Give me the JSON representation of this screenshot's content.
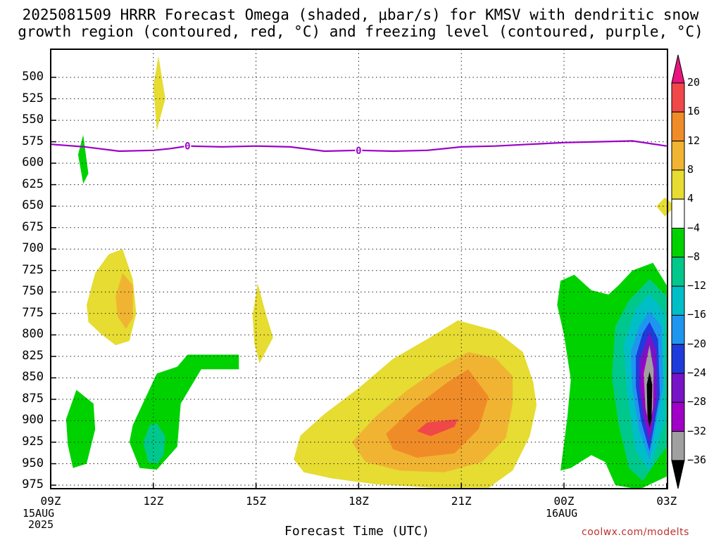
{
  "title_line1": "2025081509 HRRR Forecast Omega (shaded, μbar/s) for KMSV with dendritic snow",
  "title_line2": "growth region (contoured, red, °C) and freezing level (contoured, purple, °C)",
  "xaxis_title": "Forecast Time (UTC)",
  "credit": "coolwx.com/modelts",
  "chart_data": {
    "type": "heatmap",
    "xlabel": "Forecast Time (UTC)",
    "ylabel": "",
    "x_range_hours": [
      0,
      18
    ],
    "y_range_mb": [
      475,
      985
    ],
    "y_ticks": [
      500,
      525,
      550,
      575,
      600,
      625,
      650,
      675,
      700,
      725,
      750,
      775,
      800,
      825,
      850,
      875,
      900,
      925,
      950,
      975
    ],
    "y_tick_labels": [
      "500",
      "525",
      "550",
      "575",
      "600",
      "625",
      "650",
      "675",
      "700",
      "725",
      "750",
      "775",
      "800",
      "825",
      "850",
      "875",
      "900",
      "925",
      "950",
      "975"
    ],
    "x_ticks": [
      {
        "hour": 0,
        "label": "09Z",
        "sub1": "15AUG",
        "sub2": "2025"
      },
      {
        "hour": 3,
        "label": "12Z",
        "sub1": "",
        "sub2": ""
      },
      {
        "hour": 6,
        "label": "15Z",
        "sub1": "",
        "sub2": ""
      },
      {
        "hour": 9,
        "label": "18Z",
        "sub1": "",
        "sub2": ""
      },
      {
        "hour": 12,
        "label": "21Z",
        "sub1": "",
        "sub2": ""
      },
      {
        "hour": 15,
        "label": "00Z",
        "sub1": "16AUG",
        "sub2": ""
      },
      {
        "hour": 18,
        "label": "03Z",
        "sub1": "",
        "sub2": ""
      }
    ],
    "colorbar": {
      "labels": [
        "20",
        "16",
        "12",
        "8",
        "4",
        "−4",
        "−8",
        "−12",
        "−16",
        "−20",
        "−24",
        "−28",
        "−32",
        "−36"
      ],
      "bins": [
        {
          "range": ">20",
          "color": "#e8157f"
        },
        {
          "range": "16 to 20",
          "color": "#f04848"
        },
        {
          "range": "12 to 16",
          "color": "#f08c28"
        },
        {
          "range": "8 to 12",
          "color": "#f0b432"
        },
        {
          "range": "4 to 8",
          "color": "#e6dc32"
        },
        {
          "range": "-4 to 4",
          "color": "#ffffff"
        },
        {
          "range": "-8 to -4",
          "color": "#00d200"
        },
        {
          "range": "-12 to -8",
          "color": "#00c88c"
        },
        {
          "range": "-16 to -12",
          "color": "#00bec8"
        },
        {
          "range": "-20 to -16",
          "color": "#1e96f0"
        },
        {
          "range": "-24 to -20",
          "color": "#1e3cdc"
        },
        {
          "range": "-28 to -24",
          "color": "#7814c8"
        },
        {
          "range": "-32 to -28",
          "color": "#a000c8"
        },
        {
          "range": "-36 to -32",
          "color": "#a0a0a0"
        },
        {
          "range": "<-36",
          "color": "#000000"
        }
      ]
    },
    "freezing_level": {
      "label": "0",
      "color": "#9b00c8",
      "points": [
        [
          0,
          578
        ],
        [
          1,
          581
        ],
        [
          2,
          586
        ],
        [
          3,
          585
        ],
        [
          3.5,
          583
        ],
        [
          4,
          580
        ],
        [
          5,
          581
        ],
        [
          6,
          580
        ],
        [
          7,
          581
        ],
        [
          8,
          586
        ],
        [
          9,
          585
        ],
        [
          10,
          586
        ],
        [
          11,
          585
        ],
        [
          12,
          581
        ],
        [
          13,
          580
        ],
        [
          14,
          578
        ],
        [
          15,
          576
        ],
        [
          16,
          575
        ],
        [
          17,
          574
        ],
        [
          18,
          580
        ]
      ],
      "label_hours": [
        4,
        9
      ]
    },
    "terrain_surface_mb": 982,
    "regions": [
      {
        "bin": "4 to 8",
        "points": [
          [
            3.0,
            510
          ],
          [
            3.15,
            475
          ],
          [
            3.35,
            525
          ],
          [
            3.1,
            562
          ]
        ]
      },
      {
        "bin": "-8 to -4",
        "points": [
          [
            0.8,
            590
          ],
          [
            0.95,
            567
          ],
          [
            1.1,
            612
          ],
          [
            0.95,
            624
          ]
        ]
      },
      {
        "bin": "4 to 8",
        "points": [
          [
            17.7,
            650
          ],
          [
            17.95,
            640
          ],
          [
            18.25,
            650
          ],
          [
            17.95,
            662
          ]
        ]
      },
      {
        "bin": "4 to 8",
        "points": [
          [
            1.05,
            765
          ],
          [
            1.3,
            728
          ],
          [
            1.7,
            706
          ],
          [
            2.1,
            700
          ],
          [
            2.4,
            735
          ],
          [
            2.5,
            775
          ],
          [
            2.3,
            807
          ],
          [
            1.9,
            812
          ],
          [
            1.5,
            800
          ],
          [
            1.1,
            785
          ]
        ]
      },
      {
        "bin": "8 to 12",
        "points": [
          [
            1.9,
            755
          ],
          [
            2.1,
            728
          ],
          [
            2.4,
            742
          ],
          [
            2.4,
            780
          ],
          [
            2.2,
            793
          ],
          [
            1.95,
            778
          ]
        ]
      },
      {
        "bin": "4 to 8",
        "points": [
          [
            5.9,
            777
          ],
          [
            6.05,
            740
          ],
          [
            6.3,
            777
          ],
          [
            6.5,
            803
          ],
          [
            6.1,
            833
          ],
          [
            5.95,
            810
          ]
        ]
      },
      {
        "bin": "-8 to -4",
        "points": [
          [
            0.45,
            898
          ],
          [
            0.75,
            864
          ],
          [
            1.25,
            880
          ],
          [
            1.3,
            910
          ],
          [
            1.05,
            950
          ],
          [
            0.65,
            955
          ],
          [
            0.5,
            928
          ]
        ]
      },
      {
        "bin": "-8 to -4",
        "points": [
          [
            2.4,
            905
          ],
          [
            3.1,
            845
          ],
          [
            3.7,
            837
          ],
          [
            4.0,
            823
          ],
          [
            5.5,
            823
          ],
          [
            5.5,
            840
          ],
          [
            4.4,
            840
          ],
          [
            3.8,
            880
          ],
          [
            3.7,
            930
          ],
          [
            3.1,
            957
          ],
          [
            2.6,
            955
          ],
          [
            2.3,
            925
          ]
        ]
      },
      {
        "bin": "-12 to -8",
        "points": [
          [
            2.7,
            925
          ],
          [
            2.9,
            905
          ],
          [
            3.1,
            903
          ],
          [
            3.35,
            918
          ],
          [
            3.3,
            940
          ],
          [
            3.1,
            950
          ],
          [
            2.85,
            948
          ]
        ]
      },
      {
        "bin": "4 to 8",
        "points": [
          [
            7.1,
            945
          ],
          [
            7.3,
            917
          ],
          [
            8,
            892
          ],
          [
            9,
            862
          ],
          [
            10,
            828
          ],
          [
            11,
            805
          ],
          [
            11.9,
            783
          ],
          [
            13,
            795
          ],
          [
            13.8,
            820
          ],
          [
            14.1,
            855
          ],
          [
            14.2,
            882
          ],
          [
            14.0,
            918
          ],
          [
            13.5,
            958
          ],
          [
            12.8,
            978
          ],
          [
            11.2,
            978
          ],
          [
            9.5,
            974
          ],
          [
            8.2,
            967
          ],
          [
            7.4,
            960
          ]
        ]
      },
      {
        "bin": "8 to 12",
        "points": [
          [
            8.8,
            925
          ],
          [
            9.5,
            895
          ],
          [
            10.4,
            865
          ],
          [
            11.3,
            840
          ],
          [
            12.2,
            820
          ],
          [
            13,
            827
          ],
          [
            13.5,
            848
          ],
          [
            13.5,
            880
          ],
          [
            13.3,
            920
          ],
          [
            12.6,
            948
          ],
          [
            11.5,
            960
          ],
          [
            10.2,
            958
          ],
          [
            9.2,
            948
          ]
        ]
      },
      {
        "bin": "12 to 16",
        "points": [
          [
            9.8,
            915
          ],
          [
            10.6,
            885
          ],
          [
            11.6,
            855
          ],
          [
            12.2,
            840
          ],
          [
            12.8,
            872
          ],
          [
            12.5,
            910
          ],
          [
            11.8,
            938
          ],
          [
            10.7,
            943
          ],
          [
            10.0,
            933
          ]
        ]
      },
      {
        "bin": "16 to 20",
        "points": [
          [
            10.7,
            912
          ],
          [
            11.0,
            902
          ],
          [
            11.9,
            898
          ],
          [
            11.8,
            907
          ],
          [
            11.1,
            918
          ]
        ]
      },
      {
        "bin": "-8 to -4",
        "points": [
          [
            14.8,
            765
          ],
          [
            14.9,
            737
          ],
          [
            15.3,
            730
          ],
          [
            15.8,
            748
          ],
          [
            16.3,
            753
          ],
          [
            16.6,
            742
          ],
          [
            17.0,
            725
          ],
          [
            17.6,
            716
          ],
          [
            18.0,
            742
          ],
          [
            18.0,
            965
          ],
          [
            17.2,
            980
          ],
          [
            16.5,
            975
          ],
          [
            16.2,
            948
          ],
          [
            15.8,
            940
          ],
          [
            15.2,
            955
          ],
          [
            14.9,
            958
          ],
          [
            15.1,
            895
          ],
          [
            15.2,
            852
          ],
          [
            15.0,
            800
          ]
        ]
      },
      {
        "bin": "-12 to -8",
        "points": [
          [
            16.5,
            790
          ],
          [
            16.9,
            760
          ],
          [
            17.5,
            735
          ],
          [
            18.0,
            755
          ],
          [
            18.0,
            930
          ],
          [
            17.3,
            970
          ],
          [
            16.9,
            955
          ],
          [
            16.6,
            905
          ],
          [
            16.4,
            850
          ]
        ]
      },
      {
        "bin": "-16 to -12",
        "points": [
          [
            16.75,
            810
          ],
          [
            17.1,
            770
          ],
          [
            17.5,
            752
          ],
          [
            17.95,
            775
          ],
          [
            17.95,
            900
          ],
          [
            17.5,
            958
          ],
          [
            17.1,
            935
          ],
          [
            16.85,
            870
          ]
        ]
      },
      {
        "bin": "-20 to -16",
        "points": [
          [
            16.95,
            820
          ],
          [
            17.2,
            790
          ],
          [
            17.5,
            772
          ],
          [
            17.85,
            790
          ],
          [
            17.9,
            860
          ],
          [
            17.5,
            945
          ],
          [
            17.2,
            912
          ],
          [
            17.0,
            865
          ]
        ]
      },
      {
        "bin": "-24 to -20",
        "points": [
          [
            17.1,
            825
          ],
          [
            17.3,
            798
          ],
          [
            17.5,
            785
          ],
          [
            17.75,
            805
          ],
          [
            17.8,
            870
          ],
          [
            17.5,
            935
          ],
          [
            17.25,
            900
          ],
          [
            17.1,
            860
          ]
        ]
      },
      {
        "bin": "-28 to -24",
        "points": [
          [
            17.2,
            830
          ],
          [
            17.4,
            808
          ],
          [
            17.5,
            797
          ],
          [
            17.7,
            818
          ],
          [
            17.72,
            872
          ],
          [
            17.5,
            925
          ],
          [
            17.32,
            895
          ],
          [
            17.2,
            860
          ]
        ]
      },
      {
        "bin": "-32 to -28",
        "points": [
          [
            17.26,
            840
          ],
          [
            17.45,
            818
          ],
          [
            17.6,
            828
          ],
          [
            17.66,
            872
          ],
          [
            17.5,
            915
          ],
          [
            17.36,
            890
          ],
          [
            17.26,
            860
          ]
        ]
      },
      {
        "bin": "-36 to -32",
        "points": [
          [
            17.33,
            845
          ],
          [
            17.5,
            812
          ],
          [
            17.62,
            840
          ],
          [
            17.6,
            885
          ],
          [
            17.5,
            907
          ],
          [
            17.38,
            885
          ]
        ]
      },
      {
        "bin": "<-36",
        "points": [
          [
            17.42,
            858
          ],
          [
            17.5,
            843
          ],
          [
            17.58,
            858
          ],
          [
            17.56,
            898
          ],
          [
            17.5,
            908
          ],
          [
            17.44,
            895
          ]
        ]
      }
    ]
  }
}
